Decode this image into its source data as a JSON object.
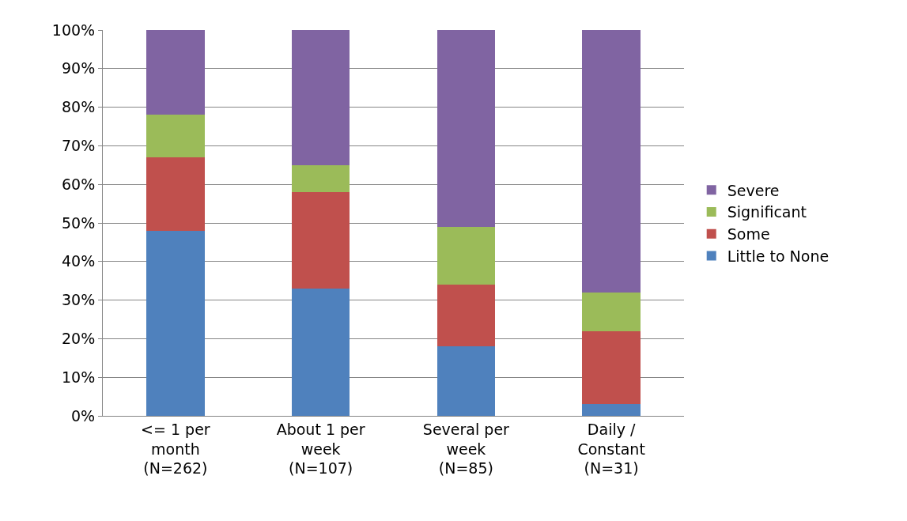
{
  "chart_data": {
    "type": "bar",
    "stacked": true,
    "categories": [
      "<= 1 per\nmonth\n(N=262)",
      "About 1 per\nweek\n(N=107)",
      "Several per\nweek\n(N=85)",
      "Daily /\nConstant\n(N=31)"
    ],
    "series": [
      {
        "name": "Little to None",
        "color": "#4f81bd",
        "values": [
          48,
          33,
          18,
          3
        ]
      },
      {
        "name": "Some",
        "color": "#c0504d",
        "values": [
          19,
          25,
          16,
          19
        ]
      },
      {
        "name": "Significant",
        "color": "#9bbb59",
        "values": [
          11,
          7,
          15,
          10
        ]
      },
      {
        "name": "Severe",
        "color": "#8064a2",
        "values": [
          22,
          35,
          51,
          68
        ]
      }
    ],
    "ylim": [
      0,
      100
    ],
    "yticks": [
      {
        "value": 0,
        "label": "0%"
      },
      {
        "value": 10,
        "label": "10%"
      },
      {
        "value": 20,
        "label": "20%"
      },
      {
        "value": 30,
        "label": "30%"
      },
      {
        "value": 40,
        "label": "40%"
      },
      {
        "value": 50,
        "label": "50%"
      },
      {
        "value": 60,
        "label": "60%"
      },
      {
        "value": 70,
        "label": "70%"
      },
      {
        "value": 80,
        "label": "80%"
      },
      {
        "value": 90,
        "label": "90%"
      },
      {
        "value": 100,
        "label": "100%"
      }
    ],
    "grid": "y",
    "legend": "right"
  }
}
